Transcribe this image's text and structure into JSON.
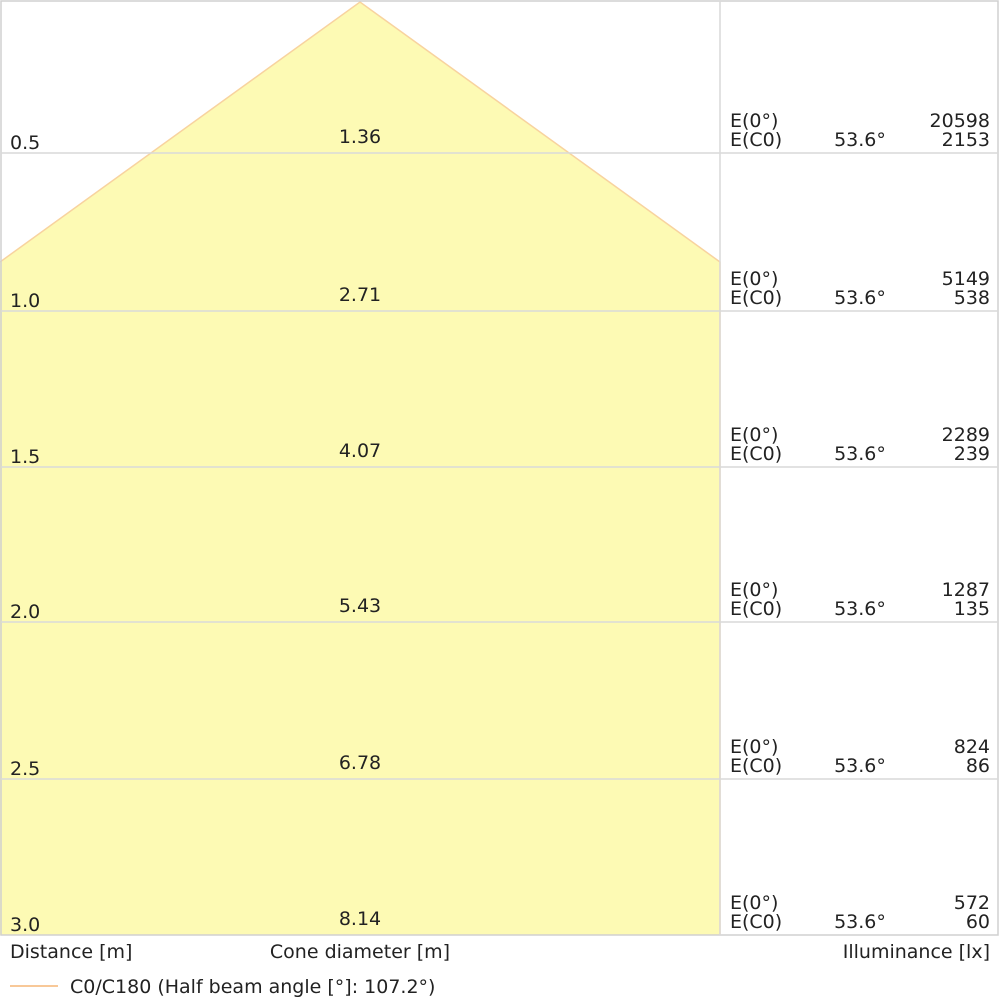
{
  "rows": [
    {
      "distance": "0.5",
      "diameter": "1.36",
      "e0_label": "E(0°)",
      "ec0_label": "E(C0)",
      "angle": "53.6°",
      "e0": "20598",
      "ec0": "2153"
    },
    {
      "distance": "1.0",
      "diameter": "2.71",
      "e0_label": "E(0°)",
      "ec0_label": "E(C0)",
      "angle": "53.6°",
      "e0": "5149",
      "ec0": "538"
    },
    {
      "distance": "1.5",
      "diameter": "4.07",
      "e0_label": "E(0°)",
      "ec0_label": "E(C0)",
      "angle": "53.6°",
      "e0": "2289",
      "ec0": "239"
    },
    {
      "distance": "2.0",
      "diameter": "5.43",
      "e0_label": "E(0°)",
      "ec0_label": "E(C0)",
      "angle": "53.6°",
      "e0": "1287",
      "ec0": "135"
    },
    {
      "distance": "2.5",
      "diameter": "6.78",
      "e0_label": "E(0°)",
      "ec0_label": "E(C0)",
      "angle": "53.6°",
      "e0": "824",
      "ec0": "86"
    },
    {
      "distance": "3.0",
      "diameter": "8.14",
      "e0_label": "E(0°)",
      "ec0_label": "E(C0)",
      "angle": "53.6°",
      "e0": "572",
      "ec0": "60"
    }
  ],
  "footer": {
    "distance_label": "Distance [m]",
    "diameter_label": "Cone diameter [m]",
    "illuminance_label": "Illuminance [lx]"
  },
  "legend": "C0/C180 (Half beam angle [°]: 107.2°)"
}
